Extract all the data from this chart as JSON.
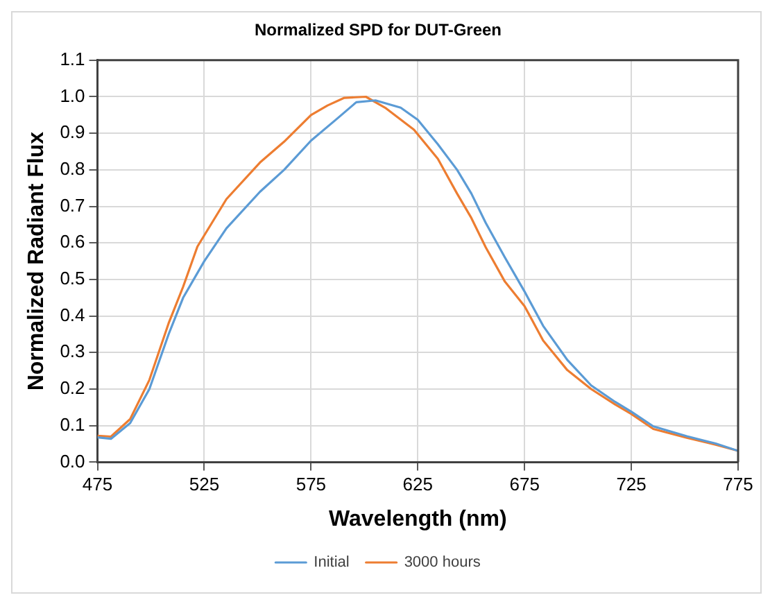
{
  "chart_data": {
    "type": "line",
    "title": "Normalized SPD for DUT-Green",
    "xlabel": "Wavelength (nm)",
    "ylabel": "Normalized Radiant Flux",
    "xlim": [
      475,
      775
    ],
    "xticks": [
      475,
      525,
      575,
      625,
      675,
      725,
      775
    ],
    "ylim": [
      0,
      1.1
    ],
    "yticks": [
      {
        "value": 0,
        "label": "0.0"
      },
      0.1,
      0.2,
      0.3,
      0.4,
      0.5,
      0.6,
      0.7,
      0.8,
      0.9,
      {
        "value": 1,
        "label": "1.0"
      },
      1.1
    ],
    "grid": true,
    "legend": "bottom",
    "marker": "none",
    "line_style": "solid",
    "series": [
      {
        "name": "Initial",
        "color": "#5b9bd5",
        "x": [
          475,
          481.3,
          490.3,
          499.3,
          508.3,
          515.1,
          525,
          535.4,
          551.1,
          562.4,
          575,
          587.2,
          596.2,
          605.2,
          617,
          625,
          634.4,
          643.4,
          650.1,
          656.8,
          665.8,
          675,
          683.7,
          695,
          706.2,
          717.4,
          725,
          735.3,
          751,
          764.5,
          775
        ],
        "values": [
          0.068,
          0.064,
          0.107,
          0.2,
          0.35,
          0.45,
          0.55,
          0.64,
          0.74,
          0.8,
          0.88,
          0.94,
          0.985,
          0.99,
          0.97,
          0.937,
          0.87,
          0.8,
          0.735,
          0.655,
          0.56,
          0.467,
          0.373,
          0.28,
          0.21,
          0.165,
          0.138,
          0.098,
          0.071,
          0.051,
          0.031
        ]
      },
      {
        "name": "3000 hours",
        "color": "#ed7d31",
        "x": [
          475,
          481.3,
          490.3,
          499.3,
          508.3,
          515.1,
          521.8,
          528.6,
          535.4,
          551.1,
          562.4,
          575,
          582.7,
          590.6,
          600.7,
          609.7,
          623.2,
          625,
          634.4,
          643.4,
          650.1,
          656.8,
          665.8,
          675,
          683.7,
          695,
          706.2,
          717.4,
          725,
          735.3,
          751,
          764.5,
          775
        ],
        "values": [
          0.072,
          0.07,
          0.118,
          0.225,
          0.38,
          0.48,
          0.59,
          0.655,
          0.72,
          0.82,
          0.877,
          0.95,
          0.976,
          0.997,
          1.0,
          0.97,
          0.91,
          0.897,
          0.83,
          0.735,
          0.668,
          0.588,
          0.494,
          0.427,
          0.333,
          0.252,
          0.2,
          0.158,
          0.132,
          0.091,
          0.067,
          0.048,
          0.031
        ]
      }
    ]
  }
}
